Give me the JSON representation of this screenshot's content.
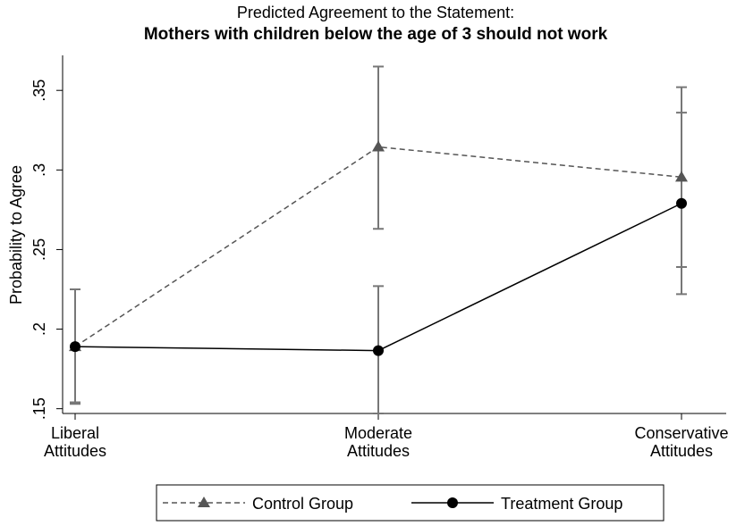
{
  "chart_data": {
    "type": "line",
    "title": "Predicted Agreement to the Statement:",
    "subtitle": "Mothers with children below the age of 3 should not work",
    "y_label": "Probability to Agree",
    "categories": [
      "Liberal Attitudes",
      "Moderate Attitudes",
      "Conservative Attitudes"
    ],
    "series": [
      {
        "name": "Control Group",
        "color": "#555555",
        "marker": "triangle",
        "dash": true,
        "values": [
          0.189,
          0.3145,
          0.2955
        ],
        "ci_low": [
          0.154,
          0.263,
          0.239
        ],
        "ci_high": [
          0.225,
          0.365,
          0.352
        ]
      },
      {
        "name": "Treatment Group",
        "color": "#000000",
        "marker": "circle",
        "dash": false,
        "values": [
          0.189,
          0.1865,
          0.279
        ],
        "ci_low": [
          0.153,
          0.147,
          0.222
        ],
        "ci_high": [
          0.225,
          0.227,
          0.336
        ]
      }
    ],
    "ci_color": "#777777",
    "ylim": [
      0.147,
      0.372
    ],
    "yticks": [
      {
        "value": 0.15,
        "label": ".15"
      },
      {
        "value": 0.2,
        "label": ".2"
      },
      {
        "value": 0.25,
        "label": ".25"
      },
      {
        "value": 0.3,
        "label": ".3"
      },
      {
        "value": 0.35,
        "label": ".35"
      }
    ],
    "legend": "bottom"
  }
}
